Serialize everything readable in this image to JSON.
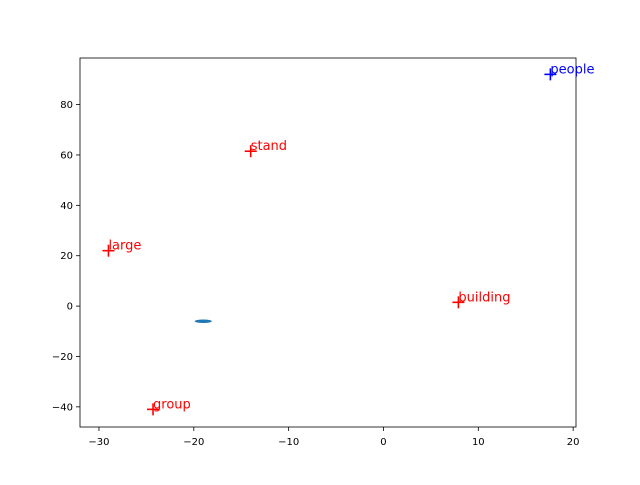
{
  "chart_data": {
    "type": "scatter",
    "title": "",
    "xlabel": "",
    "ylabel": "",
    "xlim": [
      -32,
      20.3
    ],
    "ylim": [
      -48,
      98.5
    ],
    "grid": false,
    "x_ticks": [
      -30,
      -20,
      -10,
      0,
      10,
      20
    ],
    "y_ticks": [
      -40,
      -20,
      0,
      20,
      40,
      60,
      80
    ],
    "x_tick_labels": [
      "−30",
      "−20",
      "−10",
      "0",
      "10",
      "20"
    ],
    "y_tick_labels": [
      "−40",
      "−20",
      "0",
      "20",
      "40",
      "60",
      "80"
    ],
    "points": [
      {
        "label": "people",
        "x": 17.6,
        "y": 92,
        "marker": "+",
        "color": "#0000ff"
      },
      {
        "label": "stand",
        "x": -14,
        "y": 61.5,
        "marker": "+",
        "color": "#ff0000"
      },
      {
        "label": "large",
        "x": -29,
        "y": 22,
        "marker": "+",
        "color": "#ff0000"
      },
      {
        "label": "building",
        "x": 7.9,
        "y": 1.5,
        "marker": "+",
        "color": "#ff0000"
      },
      {
        "label": "group",
        "x": -24.3,
        "y": -41,
        "marker": "+",
        "color": "#ff0000"
      }
    ],
    "ellipse": {
      "cx": -19,
      "cy": -6,
      "rx": 0.9,
      "ry": 0.7,
      "color": "#1f77b4"
    }
  }
}
